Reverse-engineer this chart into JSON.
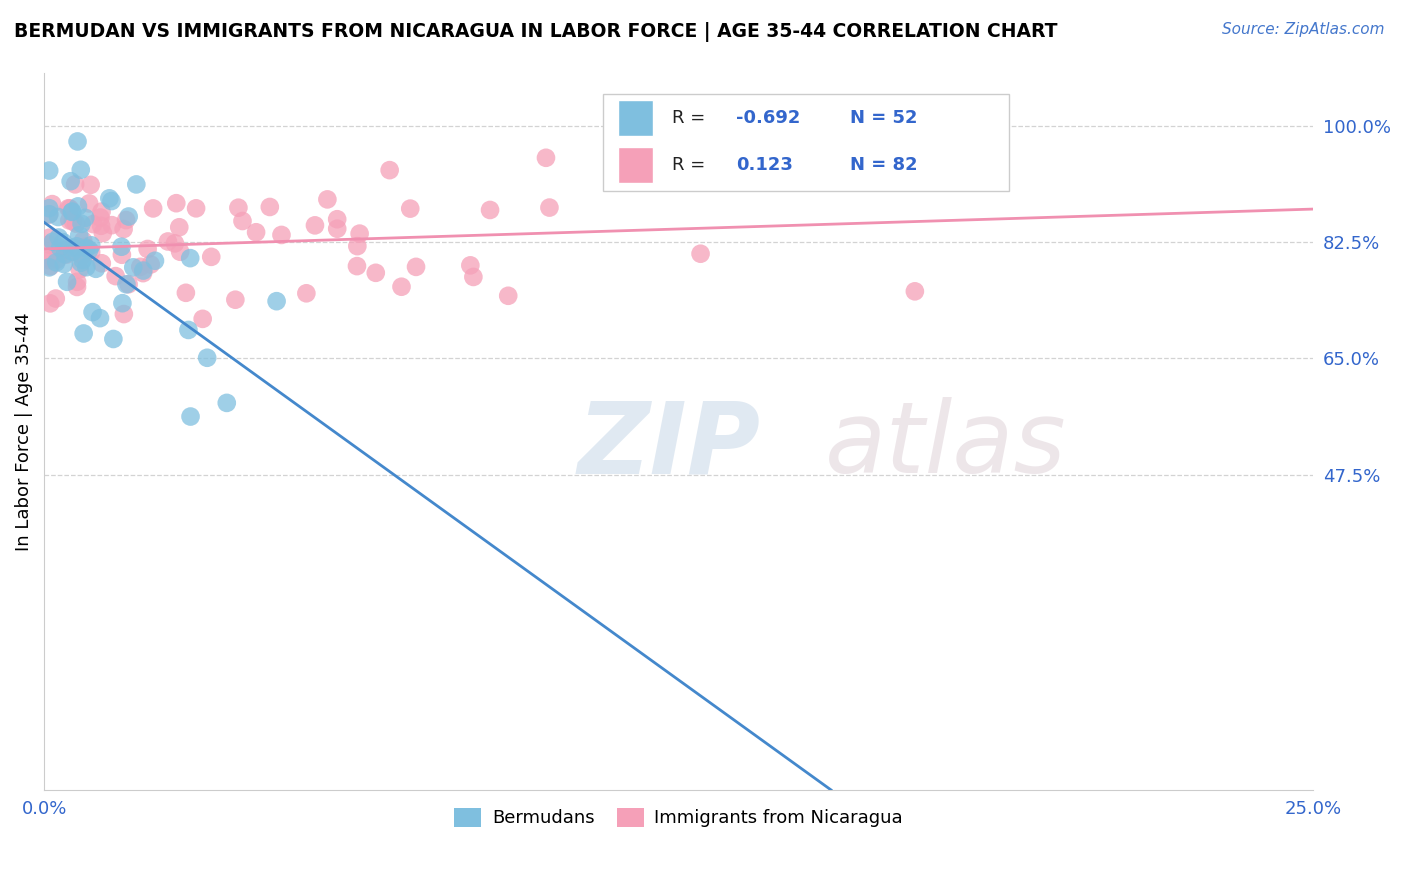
{
  "title": "BERMUDAN VS IMMIGRANTS FROM NICARAGUA IN LABOR FORCE | AGE 35-44 CORRELATION CHART",
  "source_text": "Source: ZipAtlas.com",
  "ylabel": "In Labor Force | Age 35-44",
  "right_yticks": [
    "100.0%",
    "82.5%",
    "65.0%",
    "47.5%"
  ],
  "right_ytick_vals": [
    1.0,
    0.825,
    0.65,
    0.475
  ],
  "ylim": [
    0.0,
    1.08
  ],
  "xlim": [
    0.0,
    0.25
  ],
  "blue_R": -0.692,
  "blue_N": 52,
  "pink_R": 0.123,
  "pink_N": 82,
  "blue_color": "#7fbfdf",
  "pink_color": "#f5a0b8",
  "blue_line_color": "#4488cc",
  "pink_line_color": "#f090b0",
  "legend_label_blue": "Bermudans",
  "legend_label_pink": "Immigrants from Nicaragua",
  "blue_line_x0": 0.0,
  "blue_line_y0": 0.855,
  "blue_line_x1": 0.155,
  "blue_line_y1": 0.0,
  "pink_line_x0": 0.0,
  "pink_line_y0": 0.815,
  "pink_line_x1": 0.25,
  "pink_line_y1": 0.875
}
